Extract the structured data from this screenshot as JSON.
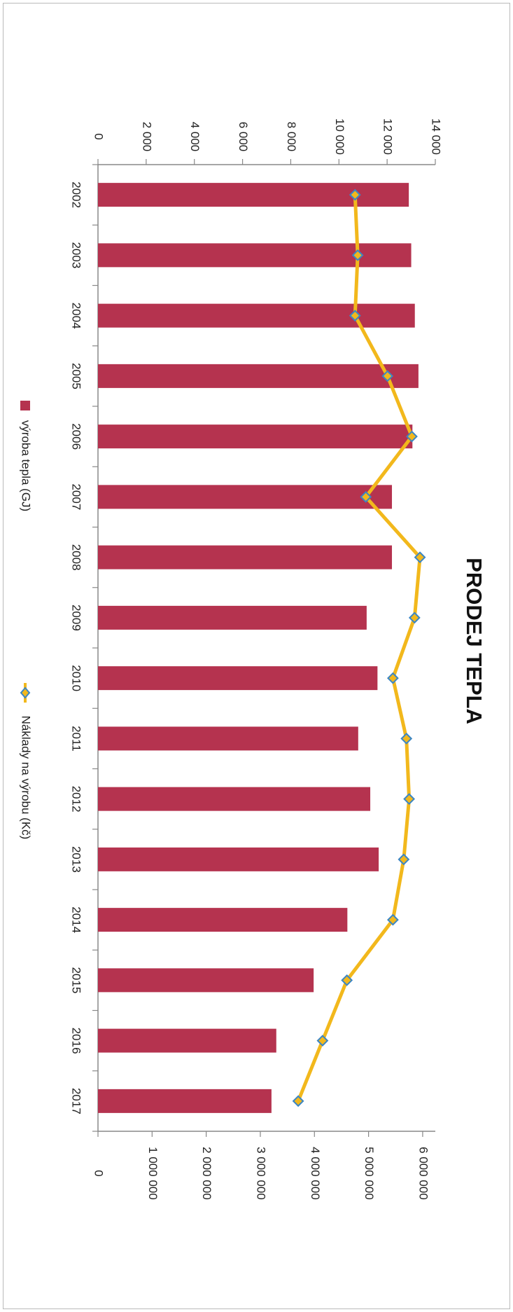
{
  "chart_data": {
    "type": "bar",
    "title": "PRODEJ TEPLA",
    "categories": [
      "2002",
      "2003",
      "2004",
      "2005",
      "2006",
      "2007",
      "2008",
      "2009",
      "2010",
      "2011",
      "2012",
      "2013",
      "2014",
      "2015",
      "2016",
      "2017"
    ],
    "series": [
      {
        "name": "výroba tepla (GJ)",
        "type": "bar",
        "axis": "primary",
        "color": "#b5334f",
        "values": [
          12900,
          13000,
          13150,
          13300,
          13050,
          12200,
          12200,
          11150,
          11600,
          10800,
          11300,
          11650,
          10350,
          8950,
          7400,
          7200
        ]
      },
      {
        "name": "Náklady na výrobu (Kč)",
        "type": "line",
        "axis": "secondary",
        "color": "#f2b81c",
        "marker_color": "#3b86c4",
        "values": [
          4750000,
          4800000,
          4750000,
          5350000,
          5800000,
          4950000,
          5950000,
          5850000,
          5450000,
          5700000,
          5750000,
          5650000,
          5450000,
          4600000,
          4150000,
          3700000
        ]
      }
    ],
    "primary_axis": {
      "ylim": [
        0,
        14000
      ],
      "ticks": [
        "0",
        "2 000",
        "4 000",
        "6 000",
        "8 000",
        "10 000",
        "12 000",
        "14 000"
      ]
    },
    "secondary_axis": {
      "ylim": [
        0,
        6500000
      ],
      "ticks": [
        "0",
        "1 000 000",
        "2 000 000",
        "3 000 000",
        "4 000 000",
        "5 000 000",
        "6 000 000"
      ]
    },
    "legend": {
      "position": "bottom"
    },
    "grid": false,
    "orientation": "rotated-90-clockwise"
  }
}
